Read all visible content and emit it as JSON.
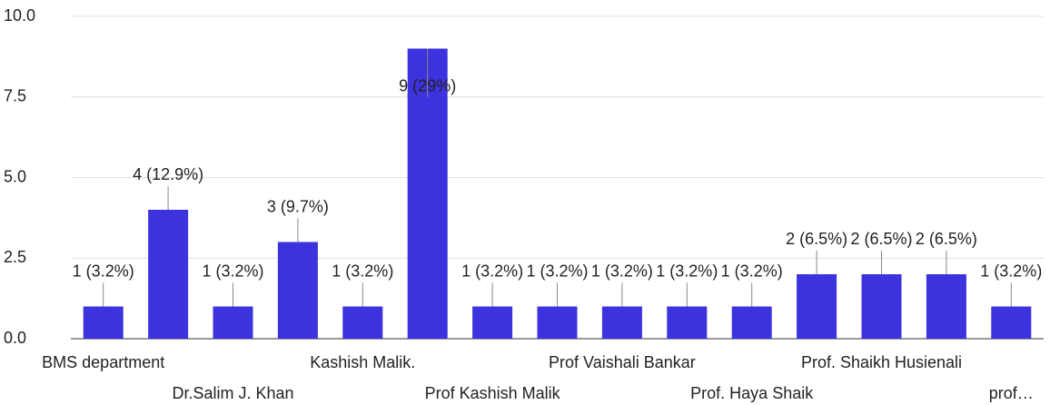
{
  "chart_data": {
    "type": "bar",
    "categories": [
      "BMS department",
      null,
      "Dr.Salim J. Khan",
      null,
      "Kashish Malik.",
      null,
      "Prof Kashish Malik",
      null,
      "Prof Vaishali Bankar",
      null,
      "Prof. Haya Shaik",
      null,
      "Prof. Shaikh Husienali",
      null,
      "prof…"
    ],
    "values": [
      1,
      4,
      1,
      3,
      1,
      9,
      1,
      1,
      1,
      1,
      1,
      2,
      2,
      2,
      1
    ],
    "value_labels": [
      "1 (3.2%)",
      "4 (12.9%)",
      "1 (3.2%)",
      "3 (9.7%)",
      "1 (3.2%)",
      "9 (29%)",
      "1 (3.2%)",
      "1 (3.2%)",
      "1 (3.2%)",
      "1 (3.2%)",
      "1 (3.2%)",
      "2 (6.5%)",
      "2 (6.5%)",
      "2 (6.5%)",
      "1 (3.2%)"
    ],
    "color": "#3c32de",
    "ylim": [
      0,
      10
    ],
    "yticks": [
      {
        "value": 0,
        "label": "0.0"
      },
      {
        "value": 2.5,
        "label": "2.5"
      },
      {
        "value": 5,
        "label": "5.0"
      },
      {
        "value": 7.5,
        "label": "7.5"
      },
      {
        "value": 10,
        "label": "10.0"
      }
    ],
    "grid": true
  }
}
